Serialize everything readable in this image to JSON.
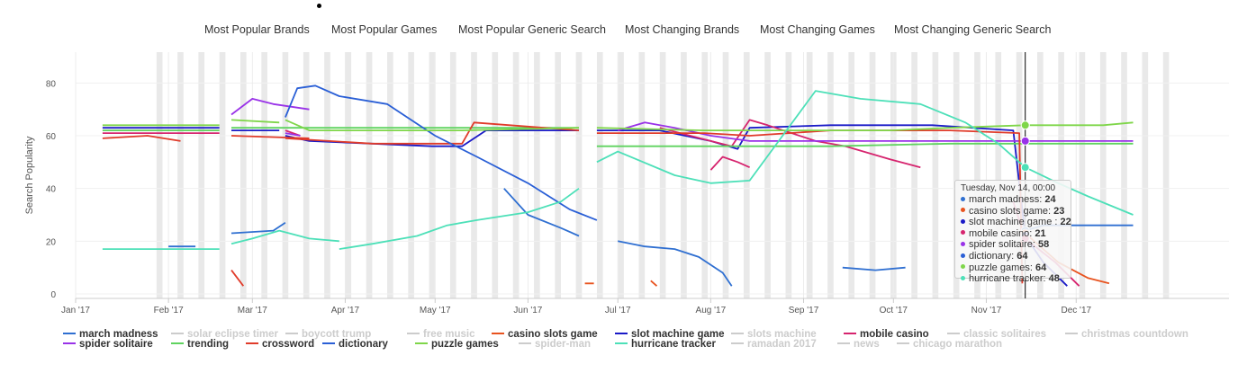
{
  "tabs": [
    "Most Popular Brands",
    "Most Popular Games",
    "Most Popular Generic Search",
    "Most Changing Brands",
    "Most Changing Games",
    "Most Changing Generic Search"
  ],
  "chart_data": {
    "type": "line",
    "ylabel": "Search Popularity",
    "ylim": [
      0,
      90
    ],
    "yticks": [
      0,
      20,
      40,
      60,
      80
    ],
    "x_range": [
      "2017-01-01",
      "2018-01-15"
    ],
    "xticks": [
      {
        "date": "2017-01-01",
        "label": "Jan '17"
      },
      {
        "date": "2017-02-01",
        "label": "Feb '17"
      },
      {
        "date": "2017-03-01",
        "label": "Mar '17"
      },
      {
        "date": "2017-04-01",
        "label": "Apr '17"
      },
      {
        "date": "2017-05-01",
        "label": "May '17"
      },
      {
        "date": "2017-06-01",
        "label": "Jun '17"
      },
      {
        "date": "2017-07-01",
        "label": "Jul '17"
      },
      {
        "date": "2017-08-01",
        "label": "Aug '17"
      },
      {
        "date": "2017-09-01",
        "label": "Sep '17"
      },
      {
        "date": "2017-10-01",
        "label": "Oct '17"
      },
      {
        "date": "2017-11-01",
        "label": "Nov '17"
      },
      {
        "date": "2017-12-01",
        "label": "Dec '17"
      }
    ],
    "weekend_bands": true,
    "crosshair_date": "2017-11-14",
    "series": [
      {
        "name": "march madness",
        "color": "#2f6fd1",
        "visible": true,
        "points": [
          [
            "2017-02-01",
            18
          ],
          [
            "2017-02-10",
            18
          ],
          [
            null,
            null
          ],
          [
            "2017-02-22",
            23
          ],
          [
            "2017-03-08",
            24
          ],
          [
            "2017-03-12",
            27
          ],
          [
            null,
            null
          ],
          [
            "2017-05-24",
            40
          ],
          [
            "2017-06-01",
            30
          ],
          [
            "2017-06-12",
            25
          ],
          [
            "2017-06-18",
            22
          ],
          [
            null,
            null
          ],
          [
            "2017-07-01",
            20
          ],
          [
            "2017-07-10",
            18
          ],
          [
            "2017-07-20",
            17
          ],
          [
            "2017-07-28",
            14
          ],
          [
            "2017-08-05",
            8
          ],
          [
            "2017-08-08",
            3
          ],
          [
            null,
            null
          ],
          [
            "2017-09-14",
            10
          ],
          [
            "2017-09-25",
            9
          ],
          [
            "2017-10-05",
            10
          ],
          [
            null,
            null
          ],
          [
            "2017-11-14",
            24
          ],
          [
            "2017-11-20",
            26
          ],
          [
            "2017-12-20",
            26
          ]
        ]
      },
      {
        "name": "solar eclipse timer",
        "color": "#cccccc",
        "visible": false,
        "points": []
      },
      {
        "name": "boycott trump",
        "color": "#cccccc",
        "visible": false,
        "points": []
      },
      {
        "name": "free music",
        "color": "#cccccc",
        "visible": false,
        "points": []
      },
      {
        "name": "casino slots game",
        "color": "#e8531f",
        "visible": true,
        "points": [
          [
            "2017-06-20",
            4
          ],
          [
            "2017-06-23",
            4
          ],
          [
            null,
            null
          ],
          [
            "2017-07-12",
            5
          ],
          [
            "2017-07-14",
            3
          ],
          [
            null,
            null
          ],
          [
            "2017-11-14",
            23
          ],
          [
            "2017-11-25",
            12
          ],
          [
            "2017-12-05",
            6
          ],
          [
            "2017-12-12",
            4
          ]
        ]
      },
      {
        "name": "slot machine game",
        "color": "#1a1ac7",
        "visible": true,
        "points": [
          [
            "2017-01-10",
            63
          ],
          [
            "2017-02-18",
            63
          ],
          [
            null,
            null
          ],
          [
            "2017-02-22",
            62
          ],
          [
            "2017-03-10",
            62
          ],
          [
            null,
            null
          ],
          [
            "2017-03-12",
            60
          ],
          [
            "2017-03-20",
            58
          ],
          [
            "2017-04-10",
            57
          ],
          [
            "2017-04-30",
            56
          ],
          [
            "2017-05-10",
            56
          ],
          [
            "2017-05-18",
            62
          ],
          [
            "2017-06-18",
            62
          ],
          [
            null,
            null
          ],
          [
            "2017-06-24",
            62
          ],
          [
            "2017-07-15",
            62
          ],
          [
            "2017-08-01",
            58
          ],
          [
            "2017-08-10",
            55
          ],
          [
            "2017-08-14",
            63
          ],
          [
            "2017-09-10",
            64
          ],
          [
            "2017-10-14",
            64
          ],
          [
            "2017-11-10",
            62
          ],
          [
            "2017-11-14",
            22
          ],
          [
            "2017-11-20",
            12
          ],
          [
            "2017-11-28",
            3
          ]
        ]
      },
      {
        "name": "slots machine",
        "color": "#cccccc",
        "visible": false,
        "points": []
      },
      {
        "name": "mobile casino",
        "color": "#d6246e",
        "visible": true,
        "points": [
          [
            "2017-01-10",
            61
          ],
          [
            "2017-02-18",
            61
          ],
          [
            null,
            null
          ],
          [
            "2017-03-12",
            62
          ],
          [
            "2017-03-17",
            60
          ],
          [
            null,
            null
          ],
          [
            "2017-07-15",
            63
          ],
          [
            "2017-08-01",
            58
          ],
          [
            "2017-08-08",
            56
          ],
          [
            "2017-08-14",
            66
          ],
          [
            "2017-08-20",
            64
          ],
          [
            "2017-09-05",
            58
          ],
          [
            "2017-09-15",
            56
          ],
          [
            "2017-09-30",
            51
          ],
          [
            "2017-10-10",
            48
          ],
          [
            null,
            null
          ],
          [
            "2017-08-01",
            47
          ],
          [
            "2017-08-05",
            52
          ],
          [
            "2017-08-10",
            50
          ],
          [
            "2017-08-14",
            48
          ],
          [
            null,
            null
          ],
          [
            "2017-11-10",
            35
          ],
          [
            "2017-11-14",
            21
          ],
          [
            "2017-11-24",
            12
          ],
          [
            "2017-12-02",
            3
          ]
        ]
      },
      {
        "name": "classic solitaires",
        "color": "#cccccc",
        "visible": false,
        "points": []
      },
      {
        "name": "christmas countdown",
        "color": "#cccccc",
        "visible": false,
        "points": []
      },
      {
        "name": "spider solitaire",
        "color": "#9932e8",
        "visible": true,
        "points": [
          [
            "2017-02-22",
            68
          ],
          [
            "2017-03-01",
            74
          ],
          [
            "2017-03-08",
            72
          ],
          [
            "2017-03-20",
            70
          ],
          [
            null,
            null
          ],
          [
            "2017-03-12",
            61
          ],
          [
            "2017-03-17",
            60
          ],
          [
            null,
            null
          ],
          [
            "2017-07-01",
            62
          ],
          [
            "2017-07-10",
            65
          ],
          [
            "2017-07-20",
            63
          ],
          [
            "2017-08-01",
            60
          ],
          [
            "2017-08-14",
            58
          ],
          [
            "2017-09-10",
            58
          ],
          [
            "2017-10-14",
            58
          ],
          [
            "2017-11-14",
            58
          ],
          [
            "2017-12-20",
            58
          ]
        ]
      },
      {
        "name": "trending",
        "color": "#5fd35f",
        "visible": true,
        "points": [
          [
            "2017-01-10",
            62
          ],
          [
            "2017-02-18",
            62
          ],
          [
            null,
            null
          ],
          [
            "2017-02-22",
            63
          ],
          [
            "2017-03-20",
            63
          ],
          [
            "2017-04-30",
            63
          ],
          [
            "2017-05-20",
            63
          ],
          [
            "2017-06-18",
            63
          ],
          [
            null,
            null
          ],
          [
            "2017-06-24",
            56
          ],
          [
            "2017-08-10",
            56
          ],
          [
            "2017-09-10",
            56
          ],
          [
            "2017-10-20",
            57
          ],
          [
            "2017-11-14",
            57
          ],
          [
            "2017-12-20",
            57
          ]
        ]
      },
      {
        "name": "crossword",
        "color": "#e03b2a",
        "visible": true,
        "points": [
          [
            "2017-01-10",
            59
          ],
          [
            "2017-01-25",
            60
          ],
          [
            "2017-02-05",
            58
          ],
          [
            null,
            null
          ],
          [
            "2017-02-22",
            60
          ],
          [
            "2017-03-20",
            59
          ],
          [
            null,
            null
          ],
          [
            "2017-02-22",
            9
          ],
          [
            "2017-02-26",
            3
          ],
          [
            null,
            null
          ],
          [
            "2017-03-12",
            59
          ],
          [
            "2017-04-10",
            57
          ],
          [
            "2017-05-10",
            57
          ],
          [
            "2017-05-14",
            65
          ],
          [
            "2017-06-18",
            62
          ],
          [
            null,
            null
          ],
          [
            "2017-06-24",
            61
          ],
          [
            "2017-07-30",
            61
          ],
          [
            "2017-08-14",
            60
          ],
          [
            "2017-09-10",
            62
          ],
          [
            "2017-10-20",
            62
          ],
          [
            "2017-11-12",
            61
          ],
          [
            "2017-11-13",
            4
          ]
        ]
      },
      {
        "name": "dictionary",
        "color": "#2a5fd6",
        "visible": true,
        "points": [
          [
            "2017-03-12",
            67
          ],
          [
            "2017-03-16",
            78
          ],
          [
            "2017-03-22",
            79
          ],
          [
            "2017-03-30",
            75
          ],
          [
            "2017-04-15",
            72
          ],
          [
            "2017-05-01",
            60
          ],
          [
            "2017-05-15",
            52
          ],
          [
            "2017-06-01",
            42
          ],
          [
            "2017-06-15",
            32
          ],
          [
            "2017-06-24",
            28
          ]
        ]
      },
      {
        "name": "puzzle games",
        "color": "#7fd64a",
        "visible": true,
        "points": [
          [
            "2017-01-10",
            64
          ],
          [
            "2017-02-18",
            64
          ],
          [
            null,
            null
          ],
          [
            "2017-02-22",
            66
          ],
          [
            "2017-03-10",
            65
          ],
          [
            null,
            null
          ],
          [
            "2017-03-12",
            66
          ],
          [
            "2017-03-20",
            62
          ],
          [
            "2017-05-10",
            62
          ],
          [
            "2017-06-18",
            63
          ],
          [
            null,
            null
          ],
          [
            "2017-06-24",
            63
          ],
          [
            "2017-07-30",
            62
          ],
          [
            "2017-08-14",
            62
          ],
          [
            "2017-09-30",
            62
          ],
          [
            "2017-10-20",
            63
          ],
          [
            "2017-11-14",
            64
          ],
          [
            "2017-12-10",
            64
          ],
          [
            "2017-12-20",
            65
          ]
        ]
      },
      {
        "name": "spider-man",
        "color": "#cccccc",
        "visible": false,
        "points": []
      },
      {
        "name": "hurricane tracker",
        "color": "#4de0b8",
        "visible": true,
        "points": [
          [
            "2017-01-10",
            17
          ],
          [
            "2017-02-18",
            17
          ],
          [
            null,
            null
          ],
          [
            "2017-02-22",
            19
          ],
          [
            "2017-03-01",
            21
          ],
          [
            "2017-03-10",
            24
          ],
          [
            "2017-03-20",
            21
          ],
          [
            "2017-03-30",
            20
          ],
          [
            null,
            null
          ],
          [
            "2017-03-30",
            17
          ],
          [
            "2017-04-10",
            19
          ],
          [
            "2017-04-25",
            22
          ],
          [
            "2017-05-05",
            26
          ],
          [
            "2017-05-15",
            28
          ],
          [
            "2017-06-01",
            31
          ],
          [
            "2017-06-12",
            35
          ],
          [
            "2017-06-18",
            40
          ],
          [
            null,
            null
          ],
          [
            "2017-06-24",
            50
          ],
          [
            "2017-07-01",
            54
          ],
          [
            "2017-07-20",
            45
          ],
          [
            "2017-08-01",
            42
          ],
          [
            "2017-08-14",
            43
          ],
          [
            "2017-09-05",
            77
          ],
          [
            "2017-09-20",
            74
          ],
          [
            "2017-10-10",
            72
          ],
          [
            "2017-10-25",
            65
          ],
          [
            "2017-11-05",
            57
          ],
          [
            "2017-11-14",
            48
          ],
          [
            "2017-11-25",
            42
          ],
          [
            "2017-12-05",
            37
          ],
          [
            "2017-12-20",
            30
          ]
        ]
      },
      {
        "name": "ramadan 2017",
        "color": "#cccccc",
        "visible": false,
        "points": []
      },
      {
        "name": "news",
        "color": "#cccccc",
        "visible": false,
        "points": []
      },
      {
        "name": "chicago marathon",
        "color": "#cccccc",
        "visible": false,
        "points": []
      }
    ],
    "tooltip": {
      "title": "Tuesday, Nov 14, 00:00",
      "rows": [
        {
          "name": "march madness",
          "value": "24",
          "color": "#2f6fd1"
        },
        {
          "name": "casino slots game",
          "value": "23",
          "color": "#e8531f"
        },
        {
          "name": "slot machine game ",
          "value": "22",
          "color": "#1a1ac7"
        },
        {
          "name": "mobile casino",
          "value": "21",
          "color": "#d6246e"
        },
        {
          "name": "spider solitaire",
          "value": "58",
          "color": "#9932e8"
        },
        {
          "name": "dictionary",
          "value": "64",
          "color": "#2a5fd6"
        },
        {
          "name": "puzzle games",
          "value": "64",
          "color": "#7fd64a"
        },
        {
          "name": "hurricane tracker",
          "value": "48",
          "color": "#4de0b8"
        }
      ]
    }
  },
  "legend_rows": [
    [
      "march madness",
      "solar eclipse timer",
      "boycott trump",
      "free music",
      "casino slots game",
      "slot machine game",
      "slots machine",
      "mobile casino",
      "classic solitaires",
      "christmas countdown"
    ],
    [
      "spider solitaire",
      "trending",
      "crossword",
      "dictionary",
      "puzzle games",
      "spider-man",
      "hurricane tracker",
      "ramadan 2017",
      "news",
      "chicago marathon"
    ]
  ]
}
